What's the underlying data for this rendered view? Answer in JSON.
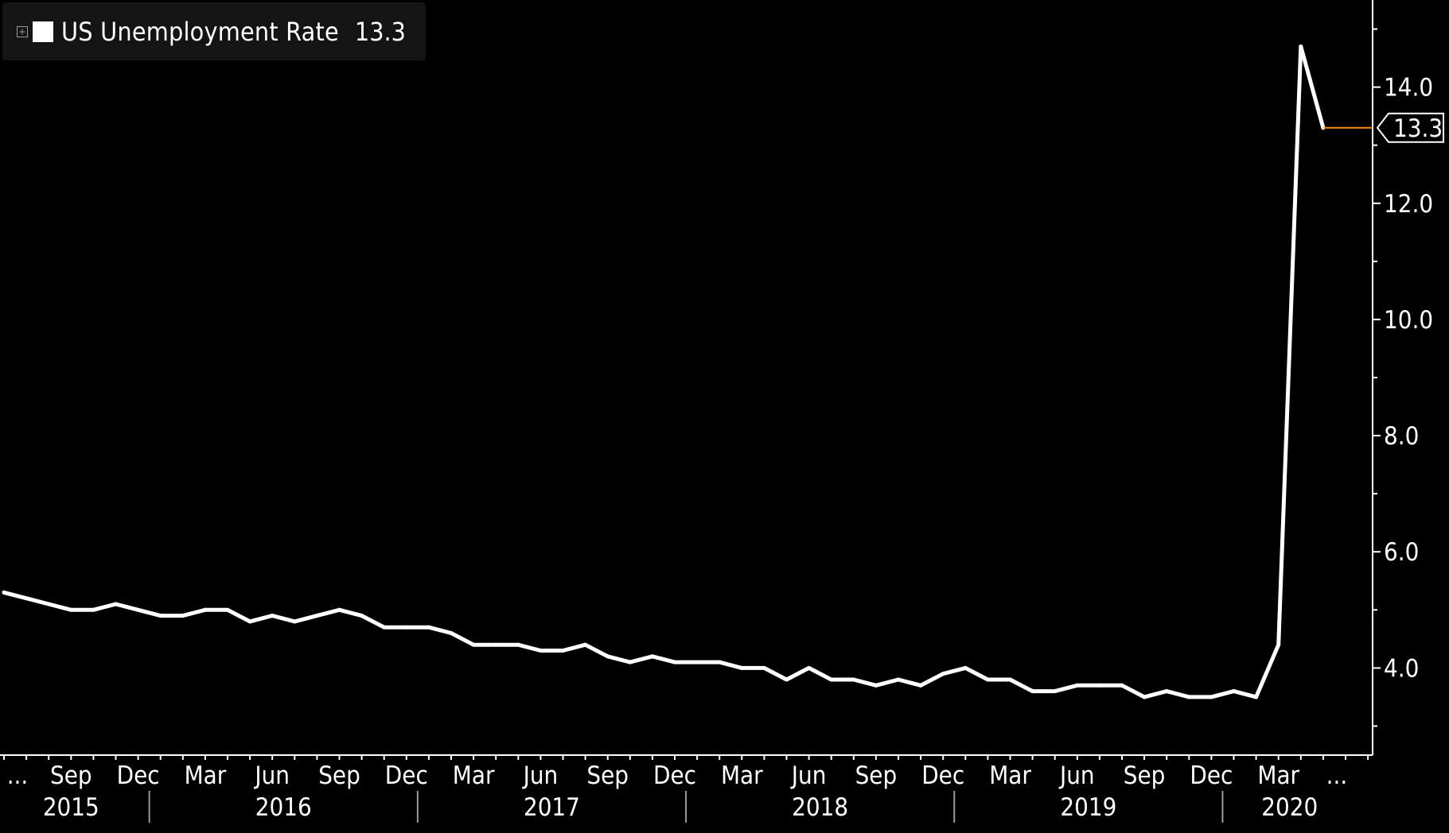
{
  "legend": {
    "series_name": "US Unemployment Rate",
    "last_value": "13.3",
    "swatch_color": "#ffffff"
  },
  "colors": {
    "background": "#000000",
    "line": "#ffffff",
    "last_price_line": "#ff8c1a",
    "axis": "#ffffff"
  },
  "chart_data": {
    "type": "line",
    "series": [
      {
        "name": "US Unemployment Rate",
        "x": [
          "2015-06",
          "2015-07",
          "2015-08",
          "2015-09",
          "2015-10",
          "2015-11",
          "2015-12",
          "2016-01",
          "2016-02",
          "2016-03",
          "2016-04",
          "2016-05",
          "2016-06",
          "2016-07",
          "2016-08",
          "2016-09",
          "2016-10",
          "2016-11",
          "2016-12",
          "2017-01",
          "2017-02",
          "2017-03",
          "2017-04",
          "2017-05",
          "2017-06",
          "2017-07",
          "2017-08",
          "2017-09",
          "2017-10",
          "2017-11",
          "2017-12",
          "2018-01",
          "2018-02",
          "2018-03",
          "2018-04",
          "2018-05",
          "2018-06",
          "2018-07",
          "2018-08",
          "2018-09",
          "2018-10",
          "2018-11",
          "2018-12",
          "2019-01",
          "2019-02",
          "2019-03",
          "2019-04",
          "2019-05",
          "2019-06",
          "2019-07",
          "2019-08",
          "2019-09",
          "2019-10",
          "2019-11",
          "2019-12",
          "2020-01",
          "2020-02",
          "2020-03",
          "2020-04",
          "2020-05"
        ],
        "values": [
          5.3,
          5.2,
          5.1,
          5.0,
          5.0,
          5.1,
          5.0,
          4.9,
          4.9,
          5.0,
          5.0,
          4.8,
          4.9,
          4.8,
          4.9,
          5.0,
          4.9,
          4.7,
          4.7,
          4.7,
          4.6,
          4.4,
          4.4,
          4.4,
          4.3,
          4.3,
          4.4,
          4.2,
          4.1,
          4.2,
          4.1,
          4.1,
          4.1,
          4.0,
          4.0,
          3.8,
          4.0,
          3.8,
          3.8,
          3.7,
          3.8,
          3.7,
          3.9,
          4.0,
          3.8,
          3.8,
          3.6,
          3.6,
          3.7,
          3.7,
          3.7,
          3.5,
          3.6,
          3.5,
          3.5,
          3.6,
          3.5,
          4.4,
          14.7,
          13.3
        ]
      }
    ],
    "x_range": [
      "2015-06",
      "2020-07"
    ],
    "ylim": [
      2.5,
      15.5
    ],
    "y_ticks": [
      4.0,
      6.0,
      8.0,
      10.0,
      12.0,
      14.0
    ],
    "y_tick_labels": [
      "4.0",
      "6.0",
      "8.0",
      "10.0",
      "12.0",
      "14.0"
    ],
    "y_axis_position": "right",
    "last_value_label": "13.3",
    "x_month_ticks": [
      {
        "label": "...",
        "month": "2015-06"
      },
      {
        "label": "Sep",
        "month": "2015-09"
      },
      {
        "label": "Dec",
        "month": "2015-12"
      },
      {
        "label": "Mar",
        "month": "2016-03"
      },
      {
        "label": "Jun",
        "month": "2016-06"
      },
      {
        "label": "Sep",
        "month": "2016-09"
      },
      {
        "label": "Dec",
        "month": "2016-12"
      },
      {
        "label": "Mar",
        "month": "2017-03"
      },
      {
        "label": "Jun",
        "month": "2017-06"
      },
      {
        "label": "Sep",
        "month": "2017-09"
      },
      {
        "label": "Dec",
        "month": "2017-12"
      },
      {
        "label": "Mar",
        "month": "2018-03"
      },
      {
        "label": "Jun",
        "month": "2018-06"
      },
      {
        "label": "Sep",
        "month": "2018-09"
      },
      {
        "label": "Dec",
        "month": "2018-12"
      },
      {
        "label": "Mar",
        "month": "2019-03"
      },
      {
        "label": "Jun",
        "month": "2019-06"
      },
      {
        "label": "Sep",
        "month": "2019-09"
      },
      {
        "label": "Dec",
        "month": "2019-12"
      },
      {
        "label": "Mar",
        "month": "2020-03"
      },
      {
        "label": "...",
        "month": "2020-05"
      }
    ],
    "x_year_labels": [
      {
        "label": "2015",
        "start": "2015-06",
        "end": "2016-01"
      },
      {
        "label": "2016",
        "start": "2016-01",
        "end": "2017-01"
      },
      {
        "label": "2017",
        "start": "2017-01",
        "end": "2018-01"
      },
      {
        "label": "2018",
        "start": "2018-01",
        "end": "2019-01"
      },
      {
        "label": "2019",
        "start": "2019-01",
        "end": "2020-01"
      },
      {
        "label": "2020",
        "start": "2020-01",
        "end": "2020-07"
      }
    ],
    "year_dividers": [
      "2016-01",
      "2017-01",
      "2018-01",
      "2019-01",
      "2020-01"
    ],
    "grid": false,
    "legend_position": "top-left"
  }
}
